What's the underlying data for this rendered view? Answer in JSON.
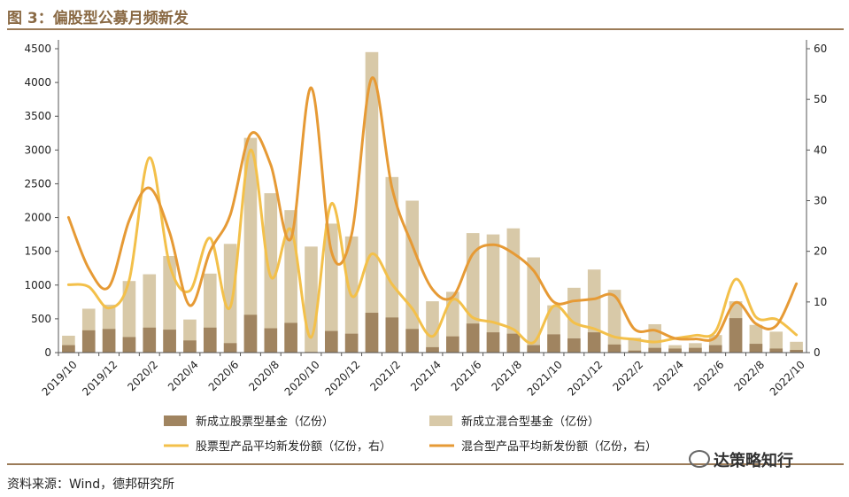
{
  "title": "图 3：偏股型公募月频新发",
  "source": "资料来源：Wind，德邦研究所",
  "watermark": "达策略知行",
  "colors": {
    "bar_stock": "#a08460",
    "bar_mixed": "#d8c9a8",
    "line_stock": "#f3c04a",
    "line_mixed": "#e69a35",
    "rule": "#9b7b58",
    "title": "#8a6a45"
  },
  "chart_data": {
    "type": "bar",
    "categories": [
      "2019/10",
      "2019/11",
      "2019/12",
      "2020/1",
      "2020/2",
      "2020/3",
      "2020/4",
      "2020/5",
      "2020/6",
      "2020/7",
      "2020/8",
      "2020/9",
      "2020/10",
      "2020/11",
      "2020/12",
      "2021/1",
      "2021/2",
      "2021/3",
      "2021/4",
      "2021/5",
      "2021/6",
      "2021/7",
      "2021/8",
      "2021/9",
      "2021/10",
      "2021/11",
      "2021/12",
      "2022/1",
      "2022/2",
      "2022/3",
      "2022/4",
      "2022/5",
      "2022/6",
      "2022/7",
      "2022/8",
      "2022/9",
      "2022/10"
    ],
    "x_tick_labels": [
      "2019/10",
      "2019/12",
      "2020/2",
      "2020/4",
      "2020/6",
      "2020/8",
      "2020/10",
      "2020/12",
      "2021/2",
      "2021/4",
      "2021/6",
      "2021/8",
      "2021/10",
      "2021/12",
      "2022/2",
      "2022/4",
      "2022/6",
      "2022/8",
      "2022/10"
    ],
    "left_axis": {
      "ylim": [
        0,
        4500
      ],
      "ticks": [
        0,
        500,
        1000,
        1500,
        2000,
        2500,
        3000,
        3500,
        4000,
        4500
      ]
    },
    "right_axis": {
      "ylim": [
        0,
        60
      ],
      "ticks": [
        0,
        10,
        20,
        30,
        40,
        50,
        60
      ]
    },
    "series": [
      {
        "name": "新成立股票型基金（亿份）",
        "kind": "bar",
        "axis": "left",
        "values": [
          110,
          330,
          350,
          230,
          370,
          340,
          180,
          370,
          140,
          560,
          360,
          440,
          10,
          320,
          280,
          590,
          520,
          350,
          80,
          240,
          430,
          300,
          280,
          110,
          270,
          210,
          300,
          120,
          30,
          70,
          60,
          70,
          110,
          510,
          130,
          60,
          40
        ]
      },
      {
        "name": "新成立混合型基金（亿份）",
        "kind": "bar",
        "axis": "left",
        "values": [
          250,
          650,
          710,
          1060,
          1160,
          1430,
          490,
          1170,
          1610,
          3180,
          2360,
          2110,
          1570,
          1910,
          1720,
          4450,
          2600,
          2250,
          760,
          900,
          1770,
          1750,
          1840,
          1410,
          700,
          960,
          1230,
          930,
          220,
          420,
          110,
          140,
          260,
          760,
          410,
          310,
          160
        ]
      },
      {
        "name": "股票型产品平均新发份额（亿份，右）",
        "kind": "line",
        "axis": "right",
        "values": [
          13.4,
          13.0,
          8.8,
          14.3,
          38.5,
          17.3,
          12.2,
          22.6,
          9.0,
          40.0,
          15.0,
          24.3,
          3.0,
          29.4,
          11.2,
          19.5,
          13.5,
          8.7,
          3.2,
          10.5,
          6.9,
          6.0,
          4.6,
          2.0,
          9.2,
          5.9,
          4.7,
          3.1,
          2.6,
          2.1,
          2.8,
          3.4,
          4.2,
          14.5,
          7.0,
          6.6,
          3.5
        ]
      },
      {
        "name": "混合型产品平均新发份额（亿份，右）",
        "kind": "line",
        "axis": "right",
        "values": [
          26.7,
          16.6,
          13.0,
          26.1,
          32.5,
          23.7,
          9.3,
          20.0,
          27.2,
          43.1,
          37.1,
          22.5,
          52.3,
          20.0,
          23.3,
          54.2,
          32.5,
          21.2,
          12.5,
          11.0,
          19.5,
          21.3,
          19.6,
          16.2,
          10.0,
          10.2,
          10.6,
          11.2,
          4.6,
          4.4,
          2.8,
          2.7,
          3.0,
          9.9,
          5.7,
          5.3,
          13.6
        ]
      }
    ],
    "legend_position": "bottom",
    "grid": false
  }
}
